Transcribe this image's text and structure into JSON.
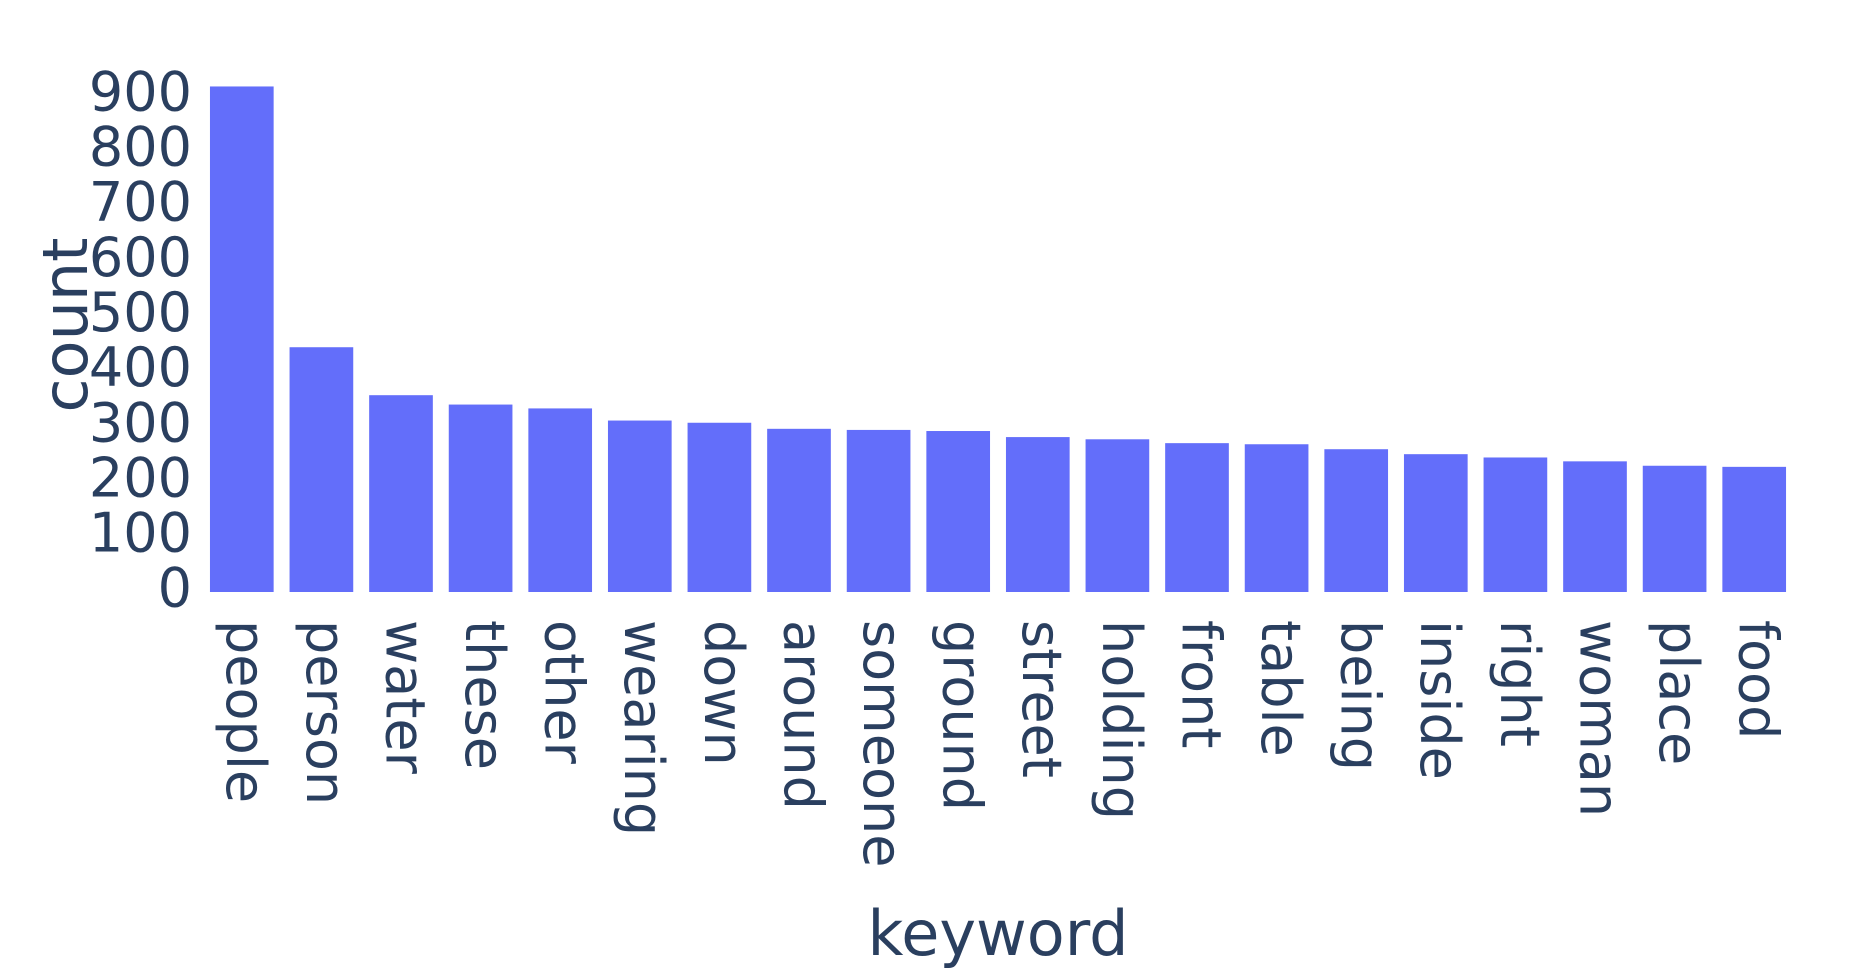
{
  "chart_data": {
    "type": "bar",
    "x_label": "keyword",
    "y_label": "count",
    "categories": [
      "people",
      "person",
      "water",
      "these",
      "other",
      "wearing",
      "down",
      "around",
      "someone",
      "ground",
      "street",
      "holding",
      "front",
      "table",
      "being",
      "inside",
      "right",
      "woman",
      "place",
      "food"
    ],
    "values": [
      917,
      444,
      357,
      340,
      333,
      311,
      307,
      296,
      294,
      292,
      281,
      277,
      270,
      268,
      259,
      250,
      244,
      237,
      229,
      227
    ],
    "color": "#636efa",
    "ylim": [
      0,
      965
    ],
    "yticks": [
      0,
      100,
      200,
      300,
      400,
      500,
      600,
      700,
      800,
      900
    ],
    "grid": false
  }
}
